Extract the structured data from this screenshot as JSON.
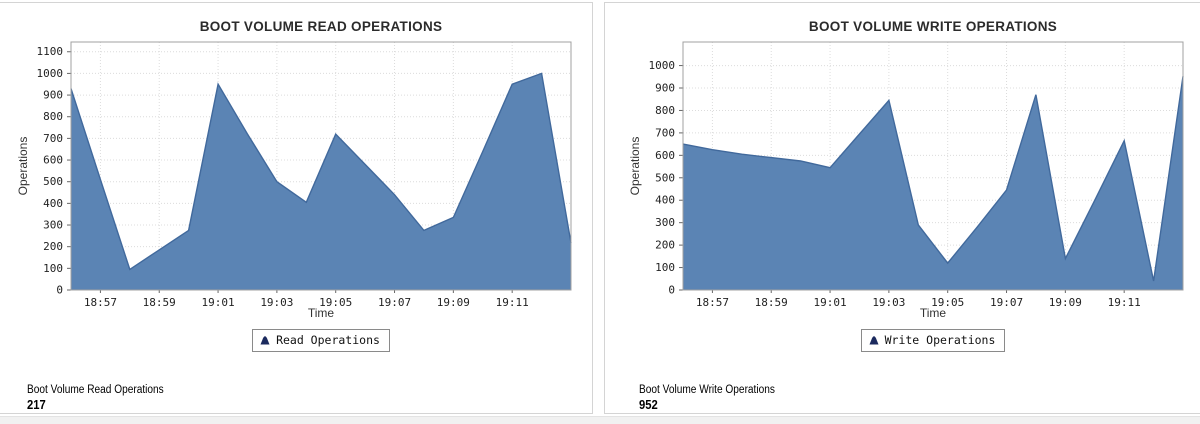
{
  "colors": {
    "area_fill": "#5b84b4",
    "area_line": "#41699c",
    "legend_icon": "#1b2a5e",
    "grid_line": "#dcdcdc",
    "plot_border": "#a0a0a0",
    "tick_mark": "#666666",
    "tick_text": "#222222"
  },
  "chart_data": [
    {
      "type": "area",
      "title": "BOOT VOLUME READ OPERATIONS",
      "xlabel": "Time",
      "ylabel": "Operations",
      "legend": [
        "Read Operations"
      ],
      "legend_position": "bottom",
      "grid": true,
      "x": [
        "18:56",
        "18:57",
        "18:58",
        "18:59",
        "19:00",
        "19:01",
        "19:02",
        "19:03",
        "19:04",
        "19:05",
        "19:06",
        "19:07",
        "19:08",
        "19:09",
        "19:10",
        "19:11",
        "19:12",
        "19:13"
      ],
      "values": [
        930,
        510,
        95,
        185,
        275,
        950,
        720,
        500,
        405,
        720,
        580,
        440,
        275,
        335,
        640,
        950,
        1000,
        217
      ],
      "x_ticks": [
        "18:57",
        "18:59",
        "19:01",
        "19:03",
        "19:05",
        "19:07",
        "19:09",
        "19:11"
      ],
      "y_ticks": [
        0,
        100,
        200,
        300,
        400,
        500,
        600,
        700,
        800,
        900,
        1000,
        1100
      ],
      "ylim": [
        0,
        1145
      ],
      "summary_label": "Boot Volume Read Operations",
      "summary_value": "217"
    },
    {
      "type": "area",
      "title": "BOOT VOLUME WRITE OPERATIONS",
      "xlabel": "Time",
      "ylabel": "Operations",
      "legend": [
        "Write Operations"
      ],
      "legend_position": "bottom",
      "grid": true,
      "x": [
        "18:56",
        "18:57",
        "18:58",
        "18:59",
        "19:00",
        "19:01",
        "19:02",
        "19:03",
        "19:04",
        "19:05",
        "19:06",
        "19:07",
        "19:08",
        "19:09",
        "19:10",
        "19:11",
        "19:12",
        "19:13"
      ],
      "values": [
        650,
        625,
        605,
        590,
        575,
        545,
        695,
        845,
        290,
        120,
        280,
        445,
        870,
        140,
        400,
        665,
        40,
        952
      ],
      "x_ticks": [
        "18:57",
        "18:59",
        "19:01",
        "19:03",
        "19:05",
        "19:07",
        "19:09",
        "19:11"
      ],
      "y_ticks": [
        0,
        100,
        200,
        300,
        400,
        500,
        600,
        700,
        800,
        900,
        1000
      ],
      "ylim": [
        0,
        1105
      ],
      "summary_label": "Boot Volume Write Operations",
      "summary_value": "952"
    }
  ]
}
